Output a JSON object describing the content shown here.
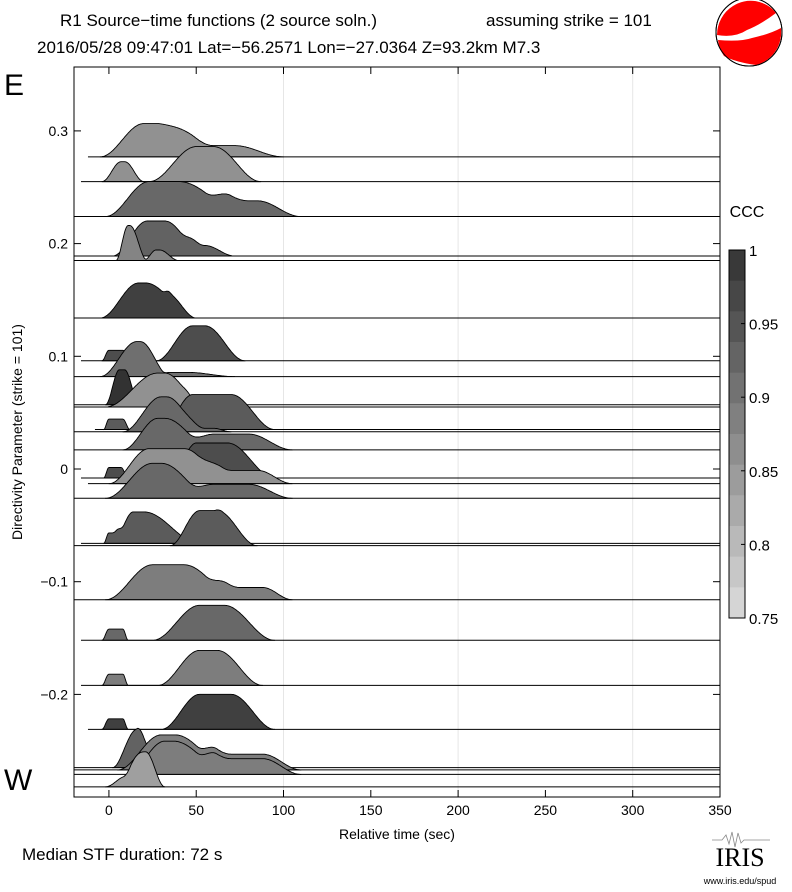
{
  "header": {
    "title": "R1 Source−time functions (2 source soln.)",
    "strike_note": "assuming strike = 101",
    "event_line": "2016/05/28 09:47:01  Lat=−56.2571 Lon=−27.0364  Z=93.2km  M7.3"
  },
  "labels": {
    "east": "E",
    "west": "W",
    "median": "Median STF duration: 72 s",
    "logo_text": "IRIS",
    "logo_url": "www.iris.edu/spud"
  },
  "colors": {
    "beachball": "#ff0000",
    "grid": "#e6e6e6"
  },
  "chart_data": {
    "type": "area",
    "title": "R1 Source−time functions (2 source soln.)",
    "xlabel": "Relative time (sec)",
    "ylabel": "Directivity Parameter (strike = 101)",
    "xlim": [
      -20,
      350
    ],
    "ylim": [
      -0.291,
      0.356
    ],
    "xticks": [
      0,
      50,
      100,
      150,
      200,
      250,
      300,
      350
    ],
    "xtick_labels": [
      "0",
      "50",
      "100",
      "150",
      "200",
      "250",
      "300",
      "350"
    ],
    "yticks": [
      0.3,
      0.2,
      0.1,
      0,
      -0.1,
      -0.2
    ],
    "ytick_labels": [
      "0.3",
      "0.2",
      "0.1",
      "0",
      "−0.1",
      "−0.2"
    ],
    "grid_x": [
      100,
      200,
      300
    ],
    "colorbar": {
      "label": "CCC",
      "range": [
        0.75,
        1
      ],
      "ticks": [
        "1",
        "0.95",
        "0.9",
        "0.85",
        "0.8",
        "0.75"
      ],
      "steps": 12
    },
    "traces": [
      {
        "dp": 0.277,
        "start": -12,
        "ccc": 0.86,
        "sources": [
          [
            -5,
            20,
            28,
            60,
            0.95
          ],
          [
            30,
            50,
            72,
            100,
            0.32
          ]
        ]
      },
      {
        "dp": 0.255,
        "start": -16,
        "ccc": 0.86,
        "sources": [
          [
            -4,
            7,
            9,
            20,
            0.57
          ],
          [
            23,
            50,
            60,
            87,
            1.0
          ]
        ]
      },
      {
        "dp": 0.224,
        "start": -20,
        "ccc": 0.92,
        "sources": [
          [
            -2,
            23,
            40,
            80,
            1.0
          ],
          [
            55,
            70,
            85,
            110,
            0.45
          ]
        ]
      },
      {
        "dp": 0.189,
        "start": -20,
        "ccc": 0.93,
        "sources": [
          [
            2,
            22,
            32,
            55,
            1.0
          ],
          [
            40,
            50,
            55,
            72,
            0.3
          ]
        ]
      },
      {
        "dp": 0.185,
        "start": -20,
        "ccc": 0.88,
        "sources": [
          [
            4,
            11,
            12,
            22,
            1.0
          ],
          [
            20,
            27,
            29,
            40,
            0.3
          ]
        ]
      },
      {
        "dp": 0.134,
        "start": -20,
        "ccc": 0.98,
        "sources": [
          [
            -5,
            17,
            21,
            50,
            1.0
          ],
          [
            30,
            35,
            38,
            50,
            0.2
          ]
        ]
      },
      {
        "dp": 0.096,
        "start": -16,
        "ccc": 0.96,
        "sources": [
          [
            -4,
            0,
            8,
            12,
            0.3
          ],
          [
            27,
            48,
            55,
            78,
            1.0
          ]
        ]
      },
      {
        "dp": 0.082,
        "start": -20,
        "ccc": 0.91,
        "sources": [
          [
            -5,
            16,
            18,
            35,
            1.0
          ],
          [
            30,
            35,
            45,
            72,
            0.12
          ]
        ]
      },
      {
        "dp": 0.057,
        "start": -20,
        "ccc": 1.0,
        "sources": [
          [
            -2,
            6,
            9,
            17,
            1.0
          ],
          [
            10,
            14,
            16,
            20,
            0.05
          ]
        ]
      },
      {
        "dp": 0.055,
        "start": -20,
        "ccc": 0.86,
        "sources": [
          [
            -2,
            28,
            32,
            55,
            0.97
          ],
          [
            40,
            45,
            50,
            55,
            0.05
          ]
        ]
      },
      {
        "dp": 0.035,
        "start": -8,
        "ccc": 0.94,
        "sources": [
          [
            -3,
            0,
            8,
            12,
            0.3
          ],
          [
            30,
            48,
            70,
            95,
            1.0
          ]
        ]
      },
      {
        "dp": 0.033,
        "start": -20,
        "ccc": 0.92,
        "sources": [
          [
            8,
            30,
            33,
            55,
            1.0
          ],
          [
            40,
            50,
            60,
            70,
            0.1
          ]
        ]
      },
      {
        "dp": 0.017,
        "start": -20,
        "ccc": 0.92,
        "sources": [
          [
            8,
            28,
            32,
            60,
            0.9
          ],
          [
            45,
            60,
            80,
            105,
            0.45
          ]
        ]
      },
      {
        "dp": -0.008,
        "start": -16,
        "ccc": 0.96,
        "sources": [
          [
            -3,
            0,
            7,
            11,
            0.3
          ],
          [
            35,
            50,
            68,
            95,
            1.0
          ]
        ]
      },
      {
        "dp": -0.013,
        "start": -12,
        "ccc": 0.86,
        "sources": [
          [
            0,
            23,
            43,
            70,
            1.0
          ],
          [
            50,
            65,
            85,
            105,
            0.38
          ]
        ]
      },
      {
        "dp": -0.026,
        "start": -20,
        "ccc": 0.92,
        "sources": [
          [
            -2,
            25,
            30,
            60,
            1.0
          ],
          [
            45,
            60,
            80,
            105,
            0.4
          ]
        ]
      },
      {
        "dp": -0.066,
        "start": -16,
        "ccc": 0.94,
        "sources": [
          [
            -3,
            0,
            4,
            9,
            0.3
          ],
          [
            2,
            14,
            20,
            52,
            0.9
          ]
        ]
      },
      {
        "dp": -0.068,
        "start": -20,
        "ccc": 0.94,
        "sources": [
          [
            35,
            52,
            62,
            85,
            1.0
          ],
          [
            60,
            62,
            64,
            66,
            0.02
          ]
        ]
      },
      {
        "dp": -0.116,
        "start": -20,
        "ccc": 0.89,
        "sources": [
          [
            -2,
            25,
            43,
            75,
            1.0
          ],
          [
            55,
            68,
            88,
            105,
            0.35
          ]
        ]
      },
      {
        "dp": -0.152,
        "start": -16,
        "ccc": 0.92,
        "sources": [
          [
            -4,
            0,
            8,
            11,
            0.32
          ],
          [
            25,
            52,
            66,
            95,
            1.0
          ]
        ]
      },
      {
        "dp": -0.192,
        "start": -16,
        "ccc": 0.89,
        "sources": [
          [
            -4,
            0,
            8,
            11,
            0.32
          ],
          [
            28,
            52,
            62,
            88,
            1.0
          ]
        ]
      },
      {
        "dp": -0.231,
        "start": -12,
        "ccc": 0.98,
        "sources": [
          [
            -4,
            0,
            8,
            11,
            0.3
          ],
          [
            30,
            52,
            70,
            95,
            1.0
          ]
        ]
      },
      {
        "dp": -0.265,
        "start": -20,
        "ccc": 0.93,
        "sources": [
          [
            2,
            15,
            16,
            25,
            1.0
          ],
          [
            10,
            30,
            35,
            60,
            0.55
          ]
        ]
      },
      {
        "dp": -0.267,
        "start": -20,
        "ccc": 0.89,
        "sources": [
          [
            5,
            30,
            38,
            70,
            1.0
          ],
          [
            50,
            62,
            88,
            110,
            0.45
          ]
        ]
      },
      {
        "dp": -0.271,
        "start": -20,
        "ccc": 0.89,
        "sources": [
          [
            10,
            32,
            37,
            70,
            0.95
          ],
          [
            50,
            62,
            88,
            110,
            0.45
          ]
        ]
      },
      {
        "dp": -0.282,
        "start": -20,
        "ccc": 0.84,
        "sources": [
          [
            -2,
            10,
            12,
            20,
            0.3
          ],
          [
            8,
            20,
            21,
            32,
            1.0
          ]
        ]
      }
    ]
  }
}
